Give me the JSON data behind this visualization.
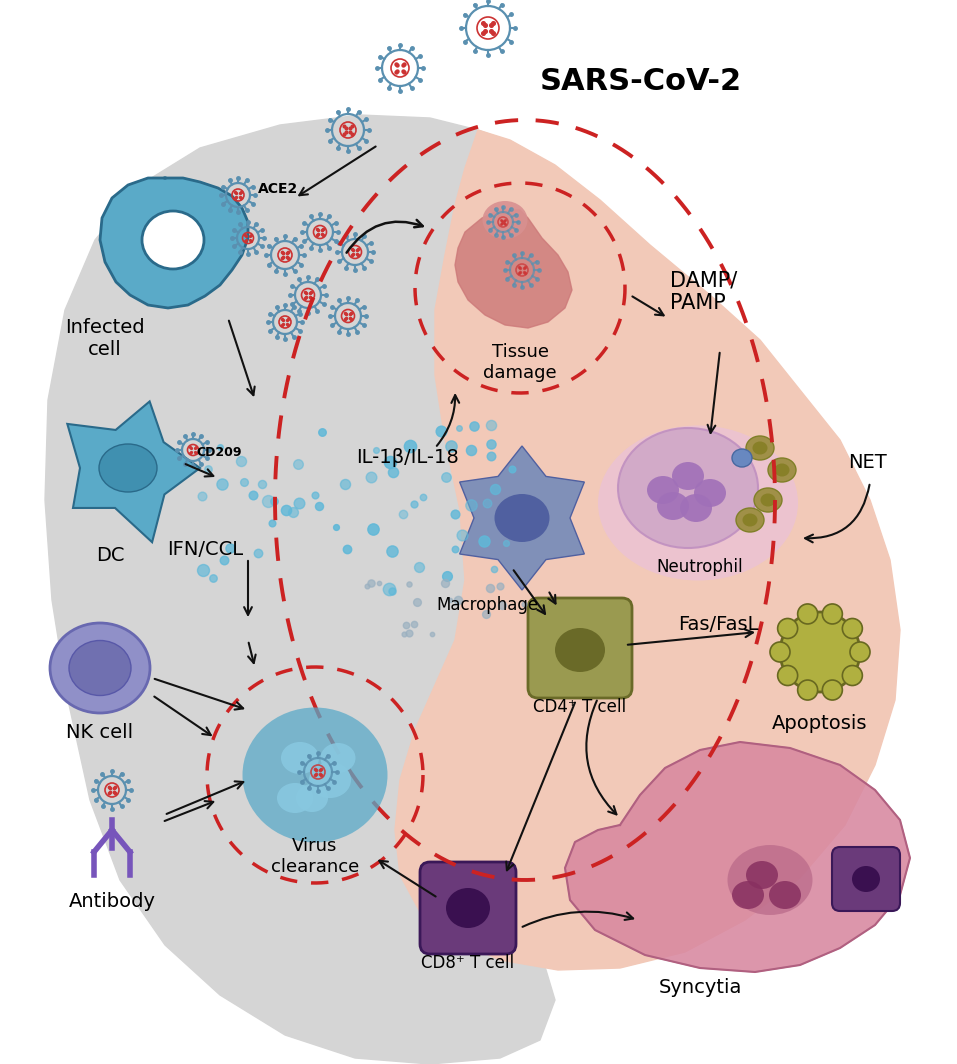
{
  "bg": "#ffffff",
  "gray_color": "#d5d5d5",
  "salmon_color": "#f2c9b8",
  "red_dash": "#cc2222",
  "blue_cell": "#5aaac8",
  "blue_dark": "#2a6a8a",
  "blue_light": "#88c8e0",
  "dc_body": "#5aaac8",
  "nk_color": "#9090c8",
  "nk_nuc": "#7070b0",
  "mac_color": "#8090b8",
  "mac_nuc": "#5060a0",
  "cd4_color": "#9a9a50",
  "cd4_nuc": "#6a6a28",
  "cd8_color": "#6a3a7a",
  "cd8_nuc": "#3a1050",
  "neutro_color": "#d0a8c8",
  "neutro_splash": "#e8c0e0",
  "apo_color": "#b0b040",
  "syn_color": "#d888a0",
  "syn_nuc": "#a85878",
  "tissue_color": "#cc7878",
  "tissue_blob2": "#d89090",
  "vc_body": "#5aaac8",
  "vc_blob": "#88c8e0",
  "dot_blue": "#60b8d8",
  "dot_gray": "#9ab0c0",
  "virus_out": "#5a90b0",
  "virus_in": "#cc3333",
  "arrow_c": "#111111",
  "label_fs": 14,
  "sars_fs": 22,
  "labels": {
    "sars": "SARS-CoV-2",
    "ace2": "ACE2",
    "infected": "Infected\ncell",
    "cd209": "CD209",
    "dc": "DC",
    "nk": "NK cell",
    "antibody": "Antibody",
    "ifn": "IFN/CCL",
    "il1b": "IL-1β/IL-18",
    "tissue": "Tissue\ndamage",
    "damp": "DAMP/\nPAMP",
    "macro": "Macrophage",
    "neutro": "Neutrophil",
    "net": "NET",
    "fas": "Fas/FasL",
    "cd4": "CD4⁺ T cell",
    "apo": "Apoptosis",
    "syn": "Syncytia",
    "vc": "Virus\nclearance",
    "cd8": "CD8⁺ T cell"
  }
}
